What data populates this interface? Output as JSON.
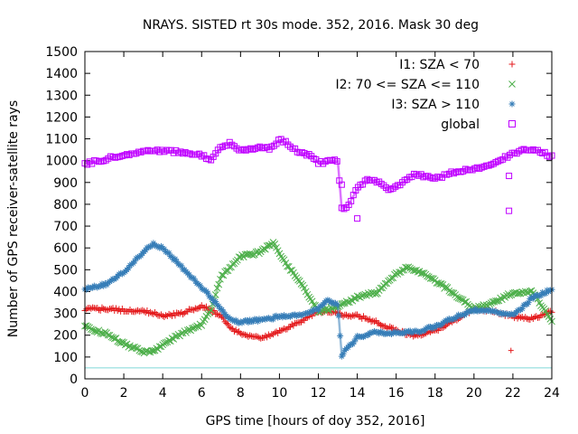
{
  "chart_data": {
    "type": "scatter",
    "title": "NRAYS. SISTED rt 30s mode. 352, 2016. Mask 30 deg",
    "xlabel": "GPS time [hours of doy 352, 2016]",
    "ylabel": "Number of GPS receiver-satellite rays",
    "xlim": [
      0,
      24
    ],
    "ylim": [
      0,
      1500
    ],
    "xticks": [
      0,
      2,
      4,
      6,
      8,
      10,
      12,
      14,
      16,
      18,
      20,
      22,
      24
    ],
    "yticks": [
      0,
      100,
      200,
      300,
      400,
      500,
      600,
      700,
      800,
      900,
      1000,
      1100,
      1200,
      1300,
      1400,
      1500
    ],
    "grid": false,
    "legend_position": "top-right",
    "reference_line": {
      "y": 50,
      "color": "#7fd8d8"
    },
    "series": [
      {
        "name": "I1: SZA < 70",
        "marker": "+",
        "color": "#e41a1c",
        "x": [
          0,
          1,
          2,
          3,
          4,
          5,
          6,
          7,
          7.5,
          8,
          9,
          10,
          11,
          12,
          13,
          13.2,
          14,
          15,
          16,
          17,
          18,
          19,
          20,
          21,
          21.8,
          22,
          23,
          24
        ],
        "y": [
          320,
          320,
          315,
          310,
          290,
          300,
          335,
          290,
          230,
          210,
          185,
          215,
          260,
          310,
          305,
          290,
          290,
          260,
          220,
          195,
          220,
          265,
          320,
          310,
          290,
          285,
          275,
          310
        ],
        "outliers": [
          {
            "x": 21.9,
            "y": 130
          }
        ]
      },
      {
        "name": "I2: 70 <= SZA <= 110",
        "marker": "x",
        "color": "#4daf4a",
        "x": [
          0,
          1,
          2,
          3,
          3.5,
          4,
          5,
          6,
          6.5,
          7,
          8,
          9,
          9.7,
          10,
          11,
          12,
          13,
          14,
          15,
          16,
          16.5,
          17,
          18,
          19,
          20,
          21,
          22,
          23,
          24
        ],
        "y": [
          240,
          210,
          160,
          125,
          125,
          155,
          210,
          250,
          320,
          470,
          560,
          580,
          625,
          570,
          450,
          310,
          330,
          375,
          395,
          480,
          510,
          500,
          450,
          390,
          320,
          350,
          395,
          400,
          265
        ]
      },
      {
        "name": "I3: SZA > 110",
        "marker": "*",
        "color": "#377eb8",
        "x": [
          0,
          1,
          2,
          3,
          3.5,
          4,
          5,
          6,
          7,
          7.5,
          8,
          9,
          10,
          11,
          12,
          12.5,
          13,
          13.2,
          14,
          15,
          16,
          17,
          18,
          19,
          20,
          21,
          22,
          23,
          24
        ],
        "y": [
          415,
          430,
          490,
          580,
          620,
          600,
          510,
          420,
          320,
          270,
          260,
          270,
          285,
          290,
          320,
          360,
          340,
          110,
          190,
          215,
          210,
          215,
          240,
          280,
          315,
          310,
          290,
          370,
          410
        ]
      },
      {
        "name": "global",
        "marker": "square",
        "color": "#bf00ff",
        "x": [
          0,
          1,
          2,
          3,
          4,
          5,
          6,
          6.5,
          7,
          7.5,
          8,
          8.5,
          9,
          9.5,
          10,
          10.5,
          11,
          11.5,
          12,
          12.5,
          13,
          13.2,
          13.5,
          14,
          14.5,
          15,
          15.5,
          16,
          17,
          18,
          19,
          20,
          21,
          22,
          23,
          24
        ],
        "y": [
          985,
          1005,
          1030,
          1040,
          1045,
          1040,
          1025,
          1005,
          1060,
          1080,
          1045,
          1055,
          1060,
          1055,
          1095,
          1075,
          1035,
          1030,
          990,
          995,
          1000,
          780,
          790,
          870,
          915,
          905,
          870,
          880,
          940,
          915,
          950,
          965,
          980,
          1035,
          1055,
          1020
        ],
        "outliers": [
          {
            "x": 13.2,
            "y": 890
          },
          {
            "x": 14,
            "y": 735
          },
          {
            "x": 21.8,
            "y": 770
          },
          {
            "x": 21.8,
            "y": 930
          }
        ]
      }
    ]
  }
}
